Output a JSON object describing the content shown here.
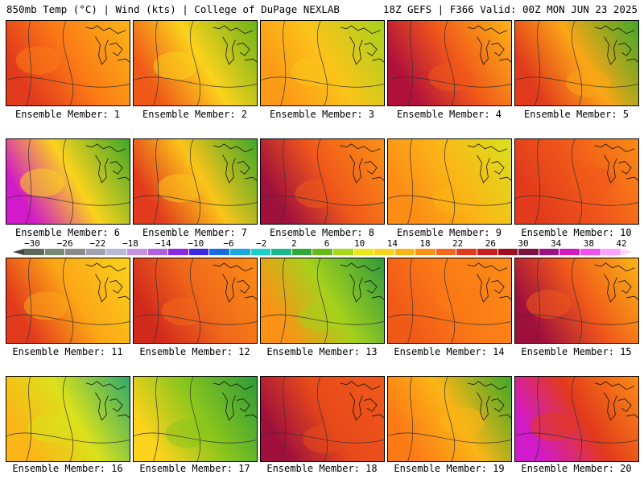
{
  "header": {
    "left": "850mb Temp (°C) | Wind (kts) | College of DuPage NEXLAB",
    "right": "18Z GEFS | F366 Valid: 00Z MON JUN 23 2025"
  },
  "members": [
    {
      "label": "Ensemble Member: 1",
      "west": "#e23a1c",
      "mid": "#fb7a16",
      "east": "#fbb516"
    },
    {
      "label": "Ensemble Member: 2",
      "west": "#ef5a18",
      "mid": "#fbd21c",
      "east": "#6db21a"
    },
    {
      "label": "Ensemble Member: 3",
      "west": "#fb9a16",
      "mid": "#fbc41a",
      "east": "#a6d11c"
    },
    {
      "label": "Ensemble Member: 4",
      "west": "#b0103c",
      "mid": "#f0581a",
      "east": "#fbb516"
    },
    {
      "label": "Ensemble Member: 5",
      "west": "#e23a1c",
      "mid": "#fba616",
      "east": "#3ea829"
    },
    {
      "label": "Ensemble Member: 6",
      "west": "#d11ac9",
      "mid": "#fbd21c",
      "east": "#3ea829"
    },
    {
      "label": "Ensemble Member: 7",
      "west": "#e23a1c",
      "mid": "#fbc41a",
      "east": "#3ea829"
    },
    {
      "label": "Ensemble Member: 8",
      "west": "#a0103c",
      "mid": "#f0581a",
      "east": "#fb9216"
    },
    {
      "label": "Ensemble Member: 9",
      "west": "#fb8c16",
      "mid": "#fbb516",
      "east": "#dbe11c"
    },
    {
      "label": "Ensemble Member: 10",
      "west": "#e23a1c",
      "mid": "#f0581a",
      "east": "#fb8c16"
    },
    {
      "label": "Ensemble Member: 11",
      "west": "#e23a1c",
      "mid": "#fba616",
      "east": "#fbd21c"
    },
    {
      "label": "Ensemble Member: 12",
      "west": "#d12a1c",
      "mid": "#f0681a",
      "east": "#fb8c16"
    },
    {
      "label": "Ensemble Member: 13",
      "west": "#fb9216",
      "mid": "#a6d11c",
      "east": "#2e9a3a"
    },
    {
      "label": "Ensemble Member: 14",
      "west": "#f05a18",
      "mid": "#fb7a16",
      "east": "#fb8c16"
    },
    {
      "label": "Ensemble Member: 15",
      "west": "#a0103c",
      "mid": "#f0581a",
      "east": "#fbb516"
    },
    {
      "label": "Ensemble Member: 16",
      "west": "#fbb516",
      "mid": "#dbe11c",
      "east": "#2eaa6a"
    },
    {
      "label": "Ensemble Member: 17",
      "west": "#fbd21c",
      "mid": "#8ac61c",
      "east": "#2e9a3a"
    },
    {
      "label": "Ensemble Member: 18",
      "west": "#a0103c",
      "mid": "#e84a1a",
      "east": "#f0581a"
    },
    {
      "label": "Ensemble Member: 19",
      "west": "#fb7a16",
      "mid": "#fbb516",
      "east": "#3ea829"
    },
    {
      "label": "Ensemble Member: 20",
      "west": "#d11ac9",
      "mid": "#e23a1c",
      "east": "#fb8c16"
    }
  ],
  "colorbar": {
    "labels": [
      "−30",
      "−26",
      "−22",
      "−18",
      "−14",
      "−10",
      "−6",
      "−2",
      "2",
      "6",
      "10",
      "14",
      "18",
      "22",
      "26",
      "30",
      "34",
      "38",
      "42"
    ],
    "colors": [
      "#5a6b5a",
      "#768a76",
      "#8a8a8a",
      "#a0a0b0",
      "#b8b8d8",
      "#c890e0",
      "#b060e0",
      "#8a2ae0",
      "#3a2ae0",
      "#1a6ae0",
      "#1aa8e0",
      "#1ad0c8",
      "#1ab88a",
      "#2ea83a",
      "#6ab81a",
      "#a8d81a",
      "#e8e81a",
      "#fbd21c",
      "#fbb516",
      "#fb9216",
      "#f0681a",
      "#e23a1c",
      "#c8201c",
      "#a0101c",
      "#801040",
      "#a01080",
      "#d01ac0",
      "#f050f0",
      "#ffa0ff"
    ]
  }
}
